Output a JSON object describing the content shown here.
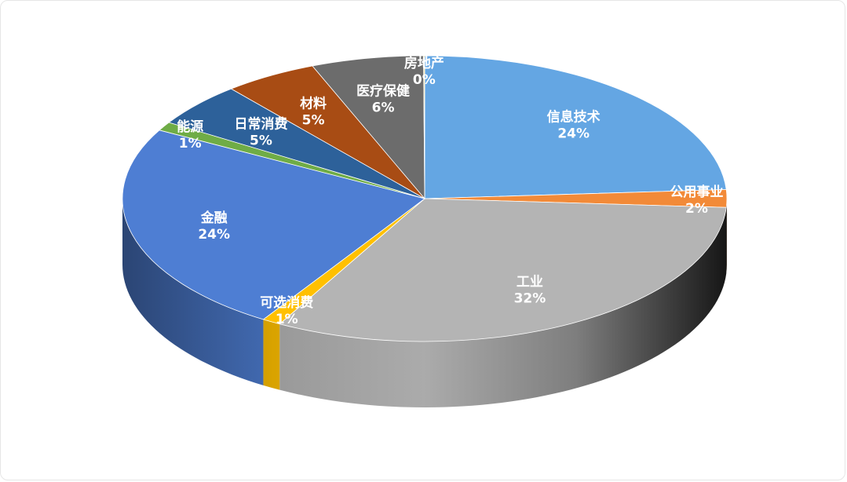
{
  "chart_data": {
    "type": "pie",
    "style": "3d",
    "title": "",
    "unit": "%",
    "slices": [
      {
        "label": "信息技术",
        "value": 24,
        "color": "#64a6e3"
      },
      {
        "label": "公用事业",
        "value": 2,
        "color": "#f28a38"
      },
      {
        "label": "工业",
        "value": 32,
        "color": "#b4b4b4"
      },
      {
        "label": "可选消费",
        "value": 1,
        "color": "#ffc000"
      },
      {
        "label": "金融",
        "value": 24,
        "color": "#4e7ed3"
      },
      {
        "label": "能源",
        "value": 1,
        "color": "#6fac46"
      },
      {
        "label": "日常消费",
        "value": 5,
        "color": "#2d619a"
      },
      {
        "label": "材料",
        "value": 5,
        "color": "#a84c14"
      },
      {
        "label": "医疗保健",
        "value": 6,
        "color": "#6c6c6c"
      },
      {
        "label": "房地产",
        "value": 0,
        "color": "#ffd966"
      }
    ]
  }
}
